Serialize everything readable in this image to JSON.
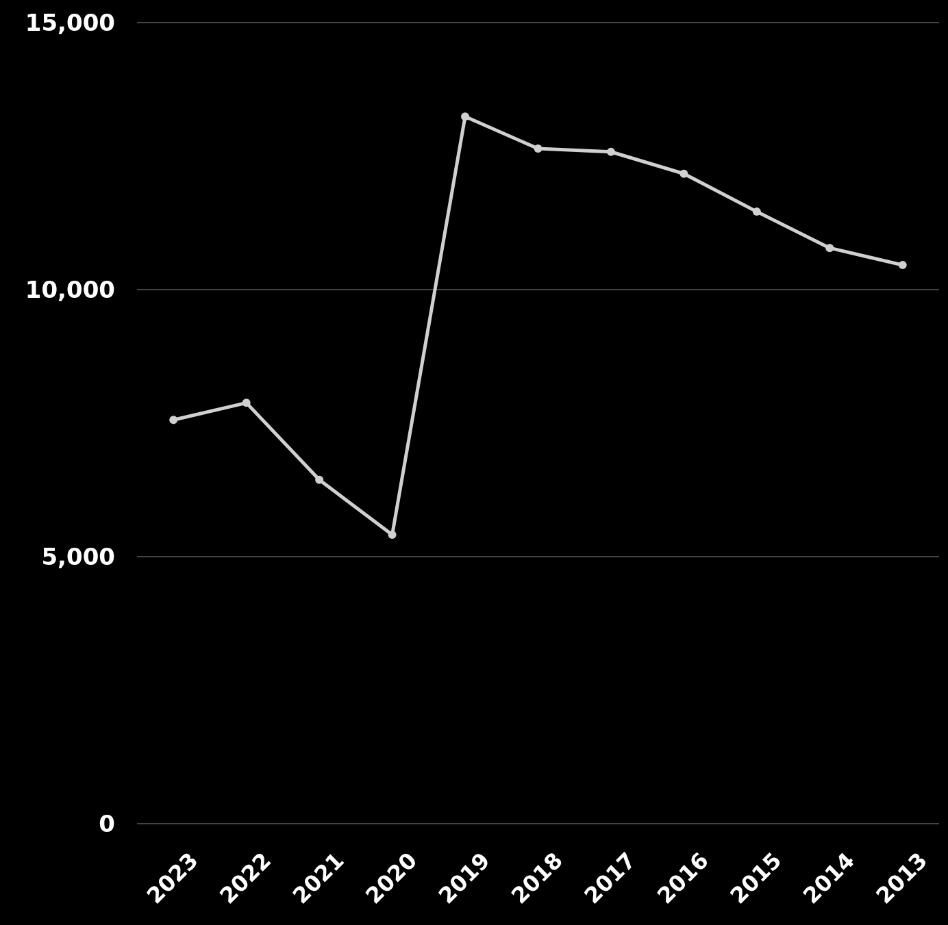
{
  "chart_data": {
    "type": "line",
    "categories": [
      "2023",
      "2022",
      "2021",
      "2020",
      "2019",
      "2018",
      "2017",
      "2016",
      "2015",
      "2014",
      "2013"
    ],
    "series": [
      {
        "color": "#d0d0d0",
        "values": [
          7560,
          7880,
          6440,
          5410,
          13240,
          12640,
          12580,
          12170,
          11460,
          10780,
          10460
        ]
      }
    ],
    "ylim": [
      0,
      15000
    ],
    "yticks": [
      {
        "value": 0,
        "label": "0"
      },
      {
        "value": 5000,
        "label": "5,000"
      },
      {
        "value": 10000,
        "label": "10,000"
      },
      {
        "value": 15000,
        "label": "15,000"
      }
    ],
    "grid": "y",
    "marker": "circle",
    "line_style": "solid"
  }
}
